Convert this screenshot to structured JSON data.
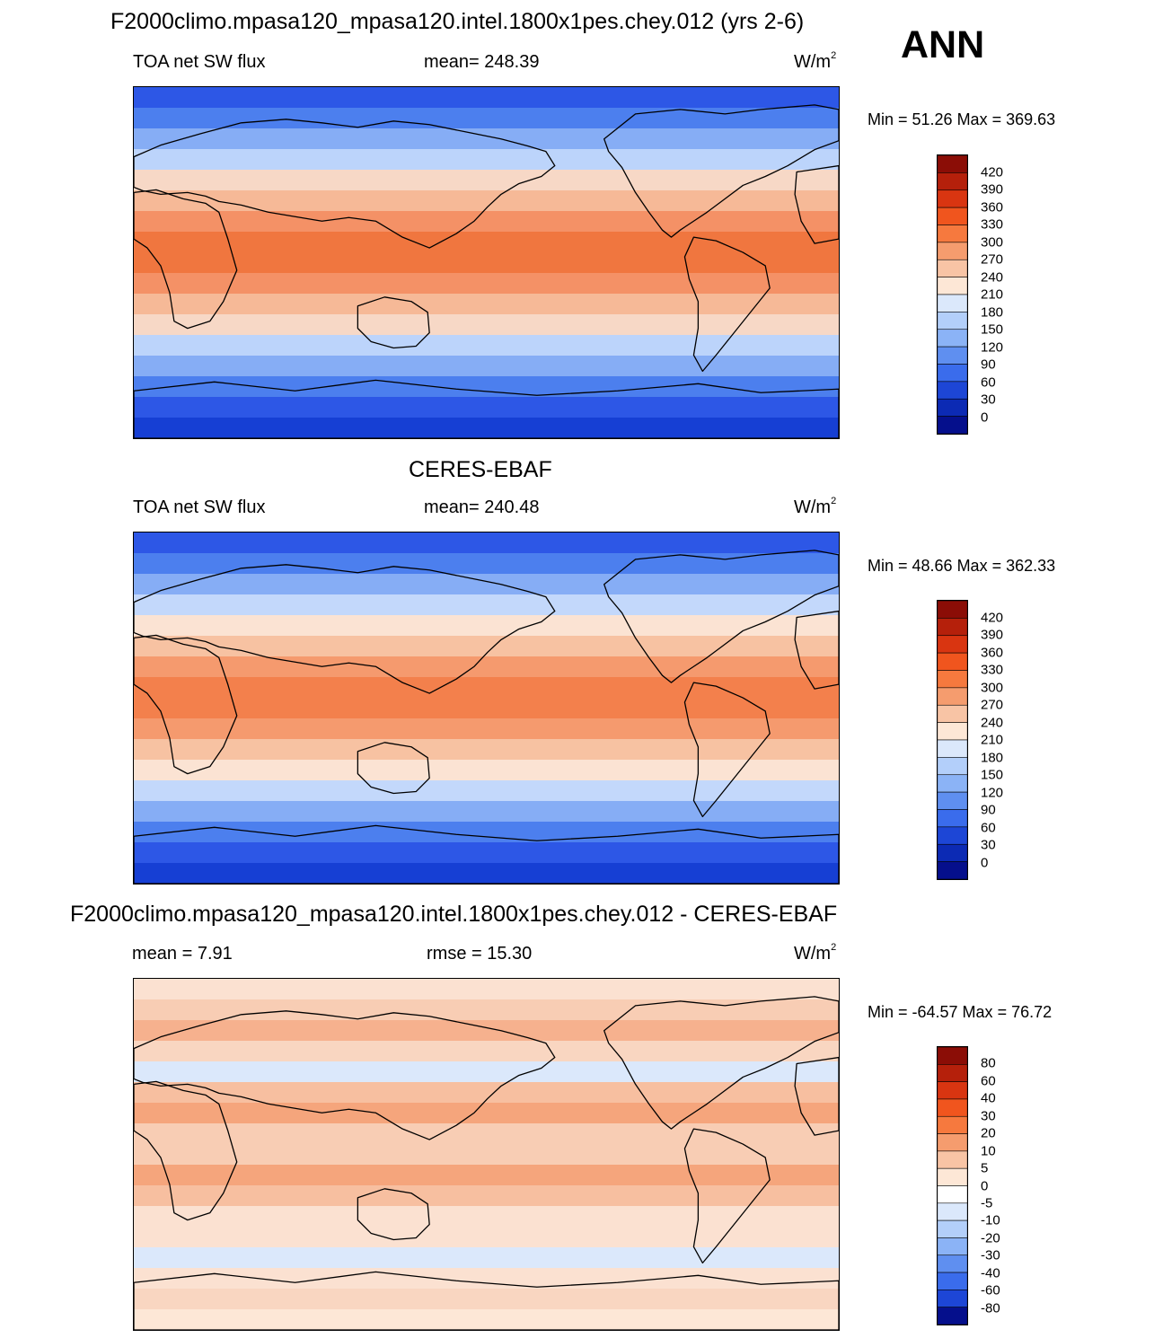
{
  "season": "ANN",
  "panels": [
    {
      "title": "F2000climo.mpasa120_mpasa120.intel.1800x1pes.chey.012 (yrs 2-6)",
      "left_label": "TOA net SW flux",
      "center_label": "mean= 248.39",
      "units": "W/m",
      "units_sup": "2",
      "minmax": "Min =  51.26 Max = 369.63",
      "colorbar": {
        "levels": [
          "420",
          "390",
          "360",
          "330",
          "300",
          "270",
          "240",
          "210",
          "180",
          "150",
          "120",
          "90",
          "60",
          "30",
          "0"
        ],
        "colors": [
          "#8b0d06",
          "#b5200b",
          "#d93511",
          "#f0551e",
          "#f6793e",
          "#f59c6e",
          "#f8c4a5",
          "#fde7d6",
          "#dbe8fb",
          "#b3cffa",
          "#8bb3f6",
          "#5f8ff0",
          "#3a6cec",
          "#1d46d6",
          "#0c2ab4",
          "#050f8c"
        ]
      },
      "map": {
        "zonal_colors": [
          "#2d57e6",
          "#4c7fee",
          "#86adf5",
          "#bcd4fb",
          "#f7d8c6",
          "#f6b997",
          "#f49166",
          "#f0763f",
          "#f0763f",
          "#f49166",
          "#f6b997",
          "#f7d8c6",
          "#bcd4fb",
          "#86adf5",
          "#4c7fee",
          "#2d57e6",
          "#163fd4"
        ]
      }
    },
    {
      "title": "CERES-EBAF",
      "left_label": "TOA net SW flux",
      "center_label": "mean= 240.48",
      "units": "W/m",
      "units_sup": "2",
      "minmax": "Min =  48.66 Max = 362.33",
      "colorbar": {
        "levels": [
          "420",
          "390",
          "360",
          "330",
          "300",
          "270",
          "240",
          "210",
          "180",
          "150",
          "120",
          "90",
          "60",
          "30",
          "0"
        ],
        "colors": [
          "#8b0d06",
          "#b5200b",
          "#d93511",
          "#f0551e",
          "#f6793e",
          "#f59c6e",
          "#f8c4a5",
          "#fde7d6",
          "#dbe8fb",
          "#b3cffa",
          "#8bb3f6",
          "#5f8ff0",
          "#3a6cec",
          "#1d46d6",
          "#0c2ab4",
          "#050f8c"
        ]
      },
      "map": {
        "zonal_colors": [
          "#2d57e6",
          "#4c7fee",
          "#86adf5",
          "#c3d8fb",
          "#fbe3d3",
          "#f7c2a2",
          "#f59a6e",
          "#f3804c",
          "#f3804c",
          "#f59a6e",
          "#f7c2a2",
          "#fbe3d3",
          "#c3d8fb",
          "#86adf5",
          "#4c7fee",
          "#2d57e6",
          "#163fd4"
        ]
      }
    },
    {
      "title": "F2000climo.mpasa120_mpasa120.intel.1800x1pes.chey.012 - CERES-EBAF",
      "left_label": "mean =   7.91",
      "center_label": "rmse =  15.30",
      "units": "W/m",
      "units_sup": "2",
      "minmax": "Min = -64.57 Max =  76.72",
      "colorbar": {
        "levels": [
          "80",
          "60",
          "40",
          "30",
          "20",
          "10",
          "5",
          "0",
          "-5",
          "-10",
          "-20",
          "-30",
          "-40",
          "-60",
          "-80"
        ],
        "colors": [
          "#8b0d06",
          "#b5200b",
          "#d93511",
          "#f0551e",
          "#f6793e",
          "#f59c6e",
          "#f8c4a5",
          "#fde7d6",
          "#ffffff",
          "#dbe8fb",
          "#b3cffa",
          "#8bb3f6",
          "#5f8ff0",
          "#3a6cec",
          "#1d46d6",
          "#050f8c"
        ]
      },
      "map": {
        "zonal_colors": [
          "#fbe1d1",
          "#f8cdb4",
          "#f6b18e",
          "#f9d6c1",
          "#dbe8fb",
          "#f7bfa0",
          "#f5a57c",
          "#f8cdb4",
          "#f8cdb4",
          "#f5a57c",
          "#f7bfa0",
          "#fbe1d1",
          "#fbe1d1",
          "#dbe8fb",
          "#fbe1d1",
          "#f9d6c1",
          "#fde7d6"
        ]
      }
    }
  ]
}
